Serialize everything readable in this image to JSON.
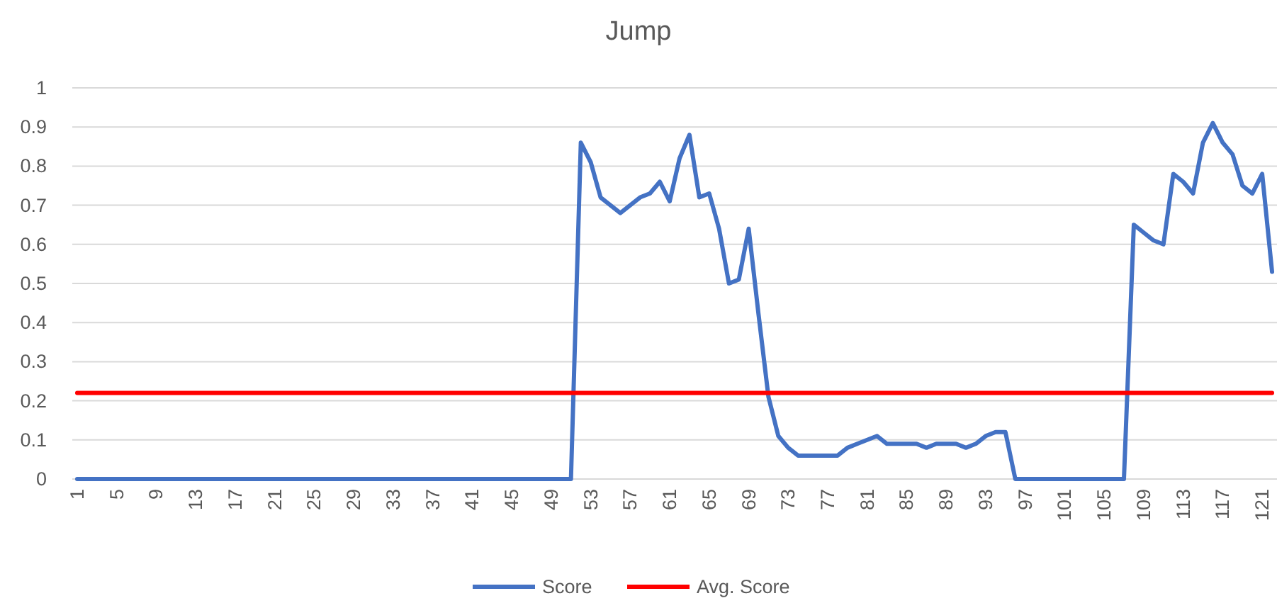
{
  "chart_data": {
    "type": "line",
    "title": "Jump",
    "categories": [
      "1",
      null,
      null,
      null,
      "5",
      null,
      null,
      null,
      "9",
      null,
      null,
      null,
      "13",
      null,
      null,
      null,
      "17",
      null,
      null,
      null,
      "21",
      null,
      null,
      null,
      "25",
      null,
      null,
      null,
      "29",
      null,
      null,
      null,
      "33",
      null,
      null,
      null,
      "37",
      null,
      null,
      null,
      "41",
      null,
      null,
      null,
      "45",
      null,
      null,
      null,
      "49",
      null,
      null,
      null,
      "53",
      null,
      null,
      null,
      "57",
      null,
      null,
      null,
      "61",
      null,
      null,
      null,
      "65",
      null,
      null,
      null,
      "69",
      null,
      null,
      null,
      "73",
      null,
      null,
      null,
      "77",
      null,
      null,
      null,
      "81",
      null,
      null,
      null,
      "85",
      null,
      null,
      null,
      "89",
      null,
      null,
      null,
      "93",
      null,
      null,
      null,
      "97",
      null,
      null,
      null,
      "101",
      null,
      null,
      null,
      "105",
      null,
      null,
      null,
      "109",
      null,
      null,
      null,
      "113",
      null,
      null,
      null,
      "117",
      null,
      null,
      null,
      "121",
      null
    ],
    "series": [
      {
        "name": "Score",
        "color": "#4472c4",
        "values": [
          0,
          0,
          0,
          0,
          0,
          0,
          0,
          0,
          0,
          0,
          0,
          0,
          0,
          0,
          0,
          0,
          0,
          0,
          0,
          0,
          0,
          0,
          0,
          0,
          0,
          0,
          0,
          0,
          0,
          0,
          0,
          0,
          0,
          0,
          0,
          0,
          0,
          0,
          0,
          0,
          0,
          0,
          0,
          0,
          0,
          0,
          0,
          0,
          0,
          0,
          0,
          0.86,
          0.81,
          0.72,
          0.7,
          0.68,
          0.7,
          0.72,
          0.73,
          0.76,
          0.71,
          0.82,
          0.88,
          0.72,
          0.73,
          0.64,
          0.5,
          0.51,
          0.64,
          0.42,
          0.21,
          0.11,
          0.08,
          0.06,
          0.06,
          0.06,
          0.06,
          0.06,
          0.08,
          0.09,
          0.1,
          0.11,
          0.09,
          0.09,
          0.09,
          0.09,
          0.08,
          0.09,
          0.09,
          0.09,
          0.08,
          0.09,
          0.11,
          0.12,
          0.12,
          0,
          0,
          0,
          0,
          0,
          0,
          0,
          0,
          0,
          0,
          0,
          0,
          0.65,
          0.63,
          0.61,
          0.6,
          0.78,
          0.76,
          0.73,
          0.86,
          0.91,
          0.86,
          0.83,
          0.75,
          0.73,
          0.78,
          0.53
        ]
      },
      {
        "name": "Avg. Score",
        "color": "#ff0000",
        "values": [
          0.22,
          0.22,
          0.22,
          0.22,
          0.22,
          0.22,
          0.22,
          0.22,
          0.22,
          0.22,
          0.22,
          0.22,
          0.22,
          0.22,
          0.22,
          0.22,
          0.22,
          0.22,
          0.22,
          0.22,
          0.22,
          0.22,
          0.22,
          0.22,
          0.22,
          0.22,
          0.22,
          0.22,
          0.22,
          0.22,
          0.22,
          0.22,
          0.22,
          0.22,
          0.22,
          0.22,
          0.22,
          0.22,
          0.22,
          0.22,
          0.22,
          0.22,
          0.22,
          0.22,
          0.22,
          0.22,
          0.22,
          0.22,
          0.22,
          0.22,
          0.22,
          0.22,
          0.22,
          0.22,
          0.22,
          0.22,
          0.22,
          0.22,
          0.22,
          0.22,
          0.22,
          0.22,
          0.22,
          0.22,
          0.22,
          0.22,
          0.22,
          0.22,
          0.22,
          0.22,
          0.22,
          0.22,
          0.22,
          0.22,
          0.22,
          0.22,
          0.22,
          0.22,
          0.22,
          0.22,
          0.22,
          0.22,
          0.22,
          0.22,
          0.22,
          0.22,
          0.22,
          0.22,
          0.22,
          0.22,
          0.22,
          0.22,
          0.22,
          0.22,
          0.22,
          0.22,
          0.22,
          0.22,
          0.22,
          0.22,
          0.22,
          0.22,
          0.22,
          0.22,
          0.22,
          0.22,
          0.22,
          0.22,
          0.22,
          0.22,
          0.22,
          0.22,
          0.22,
          0.22,
          0.22,
          0.22,
          0.22,
          0.22,
          0.22,
          0.22,
          0.22,
          0.22
        ]
      }
    ],
    "ylim": [
      0,
      1
    ],
    "yticks": [
      0,
      0.1,
      0.2,
      0.3,
      0.4,
      0.5,
      0.6,
      0.7,
      0.8,
      0.9,
      1
    ],
    "grid": "y",
    "legend": "bottom"
  }
}
